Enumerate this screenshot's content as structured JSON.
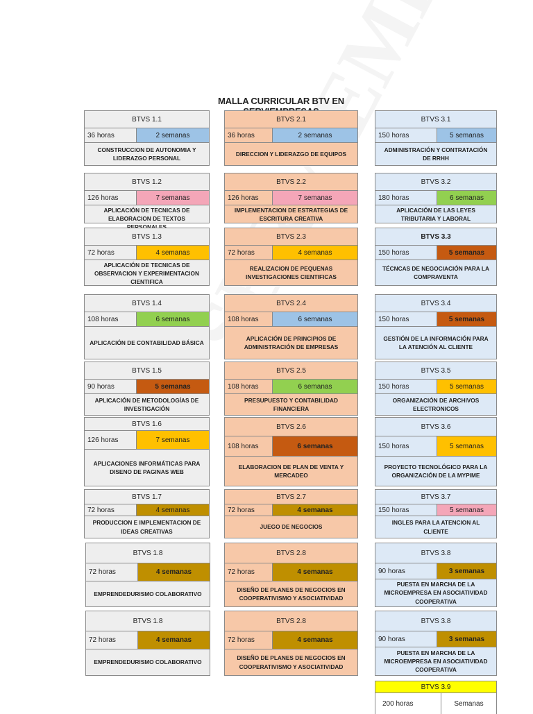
{
  "title": "MALLA CURRICULAR BTV EN SERVIEMPRESAS",
  "colors": {
    "col1_bg": "#eeeeee",
    "col2_bg": "#f7c8a8",
    "col3_bg": "#dde9f6",
    "blue": "#9dc3e6",
    "pink": "#f4a6b8",
    "green": "#92d050",
    "orange_dark": "#c55a11",
    "yellow": "#ffc000",
    "gold": "#bf8f00",
    "bright_yellow": "#ffff00"
  },
  "col1": [
    {
      "code": "BTVS 1.1",
      "hours": "36 horas",
      "weeks": "2 semanas",
      "name": "CONSTRUCCION DE AUTONOMIA Y LIDERAZGO PERSONAL"
    },
    {
      "code": "BTVS 1.2",
      "hours": "126 horas",
      "weeks": "7 semanas",
      "name": "APLICACIÓN DE TECNICAS DE ELABORACION DE TEXTOS PERSONALES"
    },
    {
      "code": "BTVS 1.3",
      "hours": "72 horas",
      "weeks": "4 semanas",
      "name": "APLICACIÓN DE TECNICAS DE OBSERVACION Y EXPERIMENTACION CIENTIFICA"
    },
    {
      "code": "BTVS 1.4",
      "hours": "108 horas",
      "weeks": "6 semanas",
      "name": "APLICACIÓN DE CONTABILIDAD BÁSICA"
    },
    {
      "code": "BTVS 1.5",
      "hours": "90 horas",
      "weeks": "5 semanas",
      "name": "APLICACIÓN DE METODOLOGÍAS DE INVESTIGACIÓN"
    },
    {
      "code": "BTVS 1.6",
      "hours": "126 horas",
      "weeks": "7 semanas",
      "name": "APLICACIONES INFORMÁTICAS PARA DISENO DE PAGINAS WEB"
    },
    {
      "code": "BTVS 1.7",
      "hours": "72 horas",
      "weeks": "4 semanas",
      "name": "PRODUCCION E IMPLEMENTACION DE IDEAS CREATIVAS"
    },
    {
      "code": "BTVS 1.8",
      "hours": "72 horas",
      "weeks": "4 semanas",
      "name": "EMPRENDEDURISMO COLABORATIVO"
    },
    {
      "code": "BTVS 1.8",
      "hours": "72 horas",
      "weeks": "4 semanas",
      "name": "EMPRENDEDURISMO COLABORATIVO"
    }
  ],
  "col2": [
    {
      "code": "BTVS 2.1",
      "hours": "36 horas",
      "weeks": "2 semanas",
      "name": "DIRECCION Y LIDERAZGO DE EQUIPOS"
    },
    {
      "code": "BTVS 2.2",
      "hours": "126 horas",
      "weeks": "7 semanas",
      "name": "IMPLEMENTACION DE ESTRATEGIAS DE ESCRITURA CREATIVA"
    },
    {
      "code": "BTVS 2.3",
      "hours": "72 horas",
      "weeks": "4 semanas",
      "name": "REALIZACION DE PEQUENAS INVESTIGACIONES CIENTIFICAS"
    },
    {
      "code": "BTVS 2.4",
      "hours": "108 horas",
      "weeks": "6 semanas",
      "name": "APLICACIÓN DE PRINCIPIOS DE ADMINISTRACIÓN DE EMPRESAS"
    },
    {
      "code": "BTVS 2.5",
      "hours": "108 horas",
      "weeks": "6 semanas",
      "name": "PRESUPUESTO Y CONTABILIDAD FINANCIERA"
    },
    {
      "code": "BTVS 2.6",
      "hours": "108 horas",
      "weeks": "6 semanas",
      "name": "ELABORACION DE PLAN DE VENTA Y MERCADEO"
    },
    {
      "code": "BTVS 2.7",
      "hours": "72 horas",
      "weeks": "4 semanas",
      "name": "JUEGO DE NEGOCIOS"
    },
    {
      "code": "BTVS 2.8",
      "hours": "72 horas",
      "weeks": "4 semanas",
      "name": "DISEÑO DE PLANES DE NEGOCIOS EN COOPERATIVISMO Y ASOCIATIVIDAD"
    },
    {
      "code": "BTVS 2.8",
      "hours": "72 horas",
      "weeks": "4 semanas",
      "name": "DISEÑO DE PLANES DE NEGOCIOS EN COOPERATIVISMO Y ASOCIATIVIDAD"
    }
  ],
  "col3": [
    {
      "code": "BTVS 3.1",
      "hours": "150 horas",
      "weeks": "5 semanas",
      "name": "ADMINISTRACIÓN Y CONTRATACIÓN DE RRHH"
    },
    {
      "code": "BTVS 3.2",
      "hours": "180 horas",
      "weeks": "6 semanas",
      "name": "APLICACIÓN DE LAS LEYES TRIBUTARIA Y LABORAL"
    },
    {
      "code": "BTVS 3.3",
      "hours": "150 horas",
      "weeks": "5 semanas",
      "name": "TÉCNCAS DE NEGOCIACIÓN PARA LA COMPRAVENTA"
    },
    {
      "code": "BTVS 3.4",
      "hours": "150 horas",
      "weeks": "5 semanas",
      "name": "GESTIÓN DE LA INFORMACIÓN PARA LA ATENCIÓN AL CLIENTE"
    },
    {
      "code": "BTVS 3.5",
      "hours": "150 horas",
      "weeks": "5 semanas",
      "name": "ORGANIZACIÓN DE ARCHIVOS ELECTRONICOS"
    },
    {
      "code": "BTVS 3.6",
      "hours": "150 horas",
      "weeks": "5 semanas",
      "name": "PROYECTO TECNOLÓGICO PARA LA ORGANIZACIÓN DE LA MYPIME"
    },
    {
      "code": "BTVS 3.7",
      "hours": "150 horas",
      "weeks": "5 semanas",
      "name": "INGLES PARA LA ATENCION AL CLIENTE"
    },
    {
      "code": "BTVS 3.8",
      "hours": "90 horas",
      "weeks": "3 semanas",
      "name": "PUESTA EN MARCHA DE LA MICROEMPRESA EN ASOCIATIVIDAD COOPERATIVA"
    },
    {
      "code": "BTVS 3.8",
      "hours": "90 horas",
      "weeks": "3 semanas",
      "name": "PUESTA EN MARCHA DE LA MICROEMPRESA EN ASOCIATIVIDAD COOPERATIVA"
    },
    {
      "code": "BTVS 3.9",
      "hours": "200 horas",
      "weeks": "Semanas",
      "name": ""
    }
  ]
}
